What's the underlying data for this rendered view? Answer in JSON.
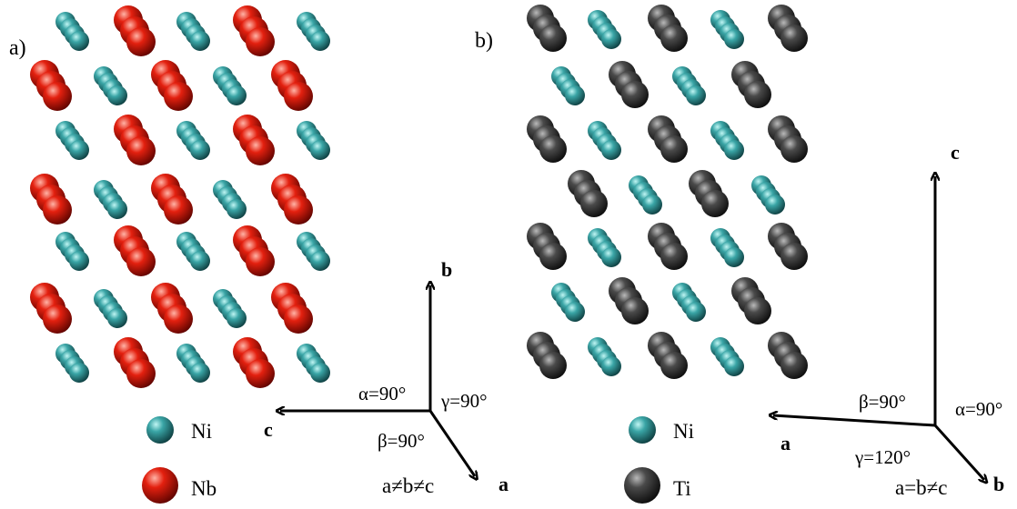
{
  "panel_a": {
    "label": "a)",
    "legend": [
      {
        "element": "Ni",
        "color": "#2e8f91"
      },
      {
        "element": "Nb",
        "color": "#e01d10"
      }
    ],
    "axes": {
      "b": "b",
      "c": "c",
      "a": "a"
    },
    "angles": {
      "alpha": "α=90°",
      "gamma": "γ=90°",
      "beta": "β=90°"
    },
    "lattice_relation": "a≠b≠c"
  },
  "panel_b": {
    "label": "b)",
    "legend": [
      {
        "element": "Ni",
        "color": "#2e8f91"
      },
      {
        "element": "Ti",
        "color": "#3c3c3c"
      }
    ],
    "axes": {
      "c": "c",
      "a": "a",
      "b": "b"
    },
    "angles": {
      "beta": "β=90°",
      "alpha": "α=90°",
      "gamma": "γ=120°"
    },
    "lattice_relation": "a=b≠c"
  }
}
